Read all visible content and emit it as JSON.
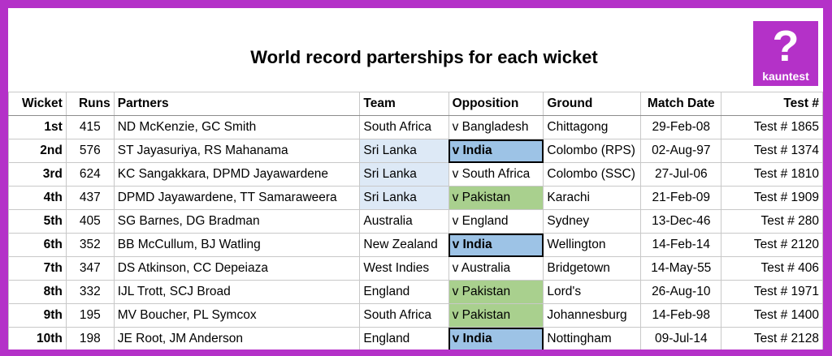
{
  "title": "World record parterships for each wicket",
  "logo": {
    "symbol": "?",
    "brand": "kauntest"
  },
  "colors": {
    "frame": "#b431c8",
    "team_fill": "#dde9f6",
    "india_fill": "#9dc3e6",
    "pakistan_fill": "#a9d08e"
  },
  "headers": [
    "Wicket",
    "Runs",
    "Partners",
    "Team",
    "Opposition",
    "Ground",
    "Match Date",
    "Test #"
  ],
  "rows": [
    {
      "wicket": "1st",
      "runs": "415",
      "partners": "ND McKenzie, GC Smith",
      "team": "South Africa",
      "opposition": "v Bangladesh",
      "ground": "Chittagong",
      "date": "29-Feb-08",
      "test": "Test # 1865",
      "team_fill": "",
      "opp_fill": ""
    },
    {
      "wicket": "2nd",
      "runs": "576",
      "partners": "ST Jayasuriya, RS Mahanama",
      "team": "Sri Lanka",
      "opposition": "v India",
      "ground": "Colombo (RPS)",
      "date": "02-Aug-97",
      "test": "Test # 1374",
      "team_fill": "light",
      "opp_fill": "blue"
    },
    {
      "wicket": "3rd",
      "runs": "624",
      "partners": "KC Sangakkara, DPMD Jayawardene",
      "team": "Sri Lanka",
      "opposition": "v South Africa",
      "ground": "Colombo (SSC)",
      "date": "27-Jul-06",
      "test": "Test # 1810",
      "team_fill": "light",
      "opp_fill": ""
    },
    {
      "wicket": "4th",
      "runs": "437",
      "partners": "DPMD Jayawardene, TT Samaraweera",
      "team": "Sri Lanka",
      "opposition": "v Pakistan",
      "ground": "Karachi",
      "date": "21-Feb-09",
      "test": "Test # 1909",
      "team_fill": "light",
      "opp_fill": "green"
    },
    {
      "wicket": "5th",
      "runs": "405",
      "partners": "SG Barnes, DG Bradman",
      "team": "Australia",
      "opposition": "v England",
      "ground": "Sydney",
      "date": "13-Dec-46",
      "test": "Test # 280",
      "team_fill": "",
      "opp_fill": ""
    },
    {
      "wicket": "6th",
      "runs": "352",
      "partners": "BB McCullum, BJ Watling",
      "team": "New Zealand",
      "opposition": "v India",
      "ground": "Wellington",
      "date": "14-Feb-14",
      "test": "Test # 2120",
      "team_fill": "",
      "opp_fill": "blue"
    },
    {
      "wicket": "7th",
      "runs": "347",
      "partners": "DS Atkinson, CC Depeiaza",
      "team": "West Indies",
      "opposition": "v Australia",
      "ground": "Bridgetown",
      "date": "14-May-55",
      "test": "Test # 406",
      "team_fill": "",
      "opp_fill": ""
    },
    {
      "wicket": "8th",
      "runs": "332",
      "partners": "IJL Trott, SCJ Broad",
      "team": "England",
      "opposition": "v Pakistan",
      "ground": "Lord's",
      "date": "26-Aug-10",
      "test": "Test # 1971",
      "team_fill": "",
      "opp_fill": "green"
    },
    {
      "wicket": "9th",
      "runs": "195",
      "partners": "MV Boucher, PL Symcox",
      "team": "South Africa",
      "opposition": "v Pakistan",
      "ground": "Johannesburg",
      "date": "14-Feb-98",
      "test": "Test # 1400",
      "team_fill": "",
      "opp_fill": "green"
    },
    {
      "wicket": "10th",
      "runs": "198",
      "partners": "JE Root, JM Anderson",
      "team": "England",
      "opposition": "v India",
      "ground": "Nottingham",
      "date": "09-Jul-14",
      "test": "Test # 2128",
      "team_fill": "",
      "opp_fill": "blue"
    }
  ]
}
